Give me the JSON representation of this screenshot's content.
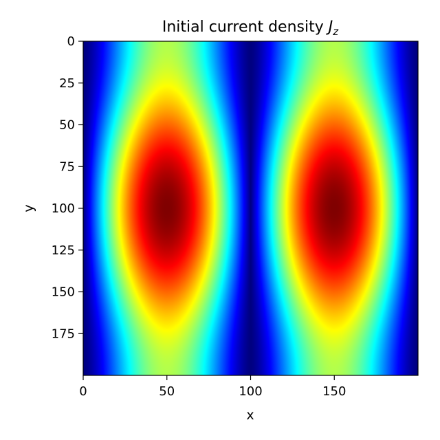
{
  "chart_data": {
    "type": "heatmap",
    "title_text": "Initial current density ",
    "title_symbol": "J",
    "title_subscript": "z",
    "xlabel": "x",
    "ylabel": "y",
    "xlim": [
      0,
      200
    ],
    "ylim": [
      0,
      200
    ],
    "y_inverted": true,
    "colormap": "jet",
    "x_ticks": [
      0,
      50,
      100,
      150
    ],
    "y_ticks": [
      0,
      25,
      50,
      75,
      100,
      125,
      150,
      175
    ],
    "x_tick_labels": [
      "0",
      "50",
      "100",
      "150"
    ],
    "y_tick_labels": [
      "0",
      "25",
      "50",
      "75",
      "100",
      "125",
      "150",
      "175"
    ],
    "field": {
      "description_of_pattern": "two vertical lobes peaking near x=50 and x=150 at y=100, minima near x=0, 100, 200 and y=0, 200",
      "peak_centers": [
        [
          50,
          100
        ],
        [
          150,
          100
        ]
      ],
      "min_value": 0,
      "max_value": 1
    },
    "grid": false
  }
}
